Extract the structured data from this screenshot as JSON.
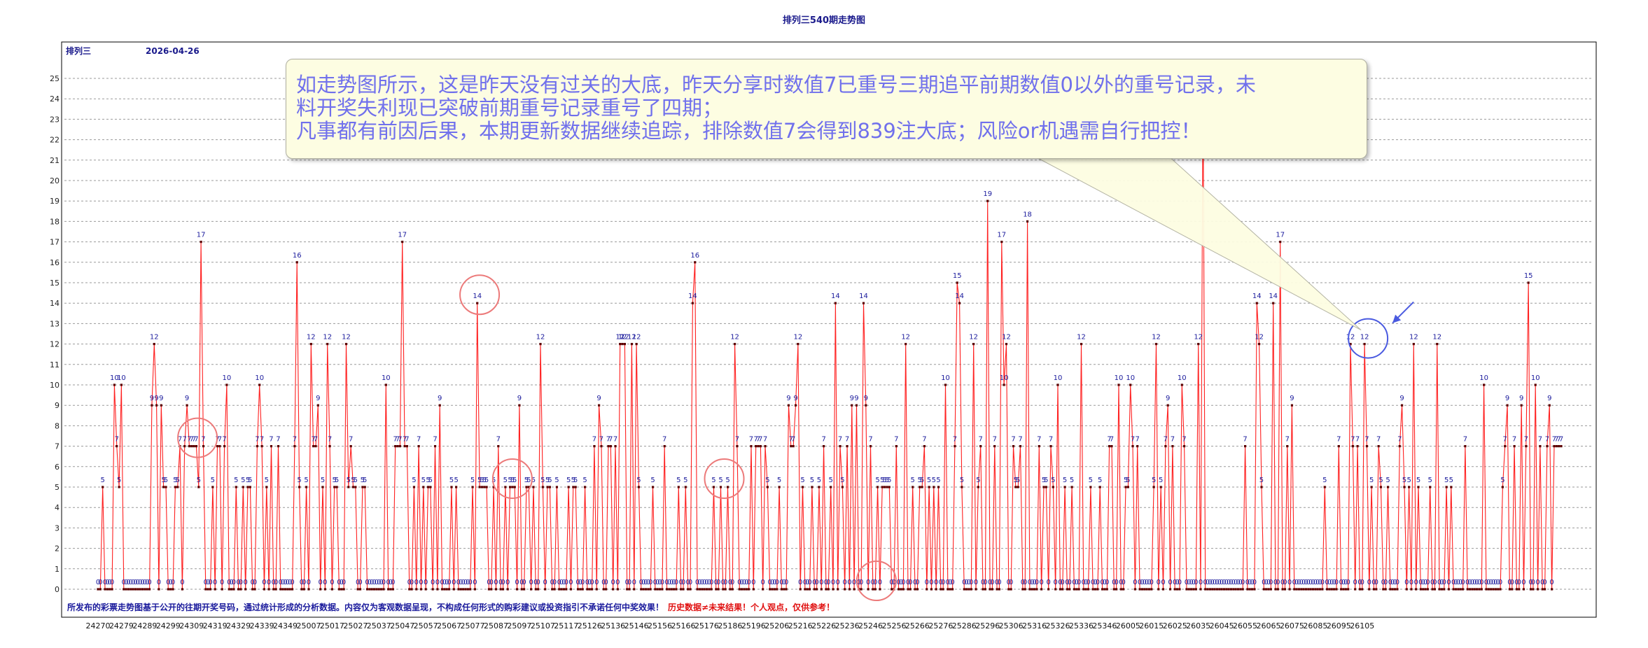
{
  "header": {
    "title": "排列三540期走势图",
    "lottery_name": "排列三",
    "date": "2026-04-26"
  },
  "chart_data": {
    "type": "line",
    "title": "排列三540期走势图",
    "ylim": [
      0,
      26
    ],
    "yticks": [
      0,
      1,
      2,
      3,
      4,
      5,
      6,
      7,
      8,
      9,
      10,
      11,
      12,
      13,
      14,
      15,
      16,
      17,
      18,
      19,
      20,
      21,
      22,
      23,
      24,
      25
    ],
    "grid": true,
    "x_tick_labels": [
      "24270",
      "24279",
      "24289",
      "24299",
      "24309",
      "24319",
      "24329",
      "24339",
      "24349",
      "25007",
      "25017",
      "25027",
      "25037",
      "25047",
      "25057",
      "25067",
      "25077",
      "25087",
      "25097",
      "25107",
      "25117",
      "25126",
      "25136",
      "25146",
      "25156",
      "25166",
      "25176",
      "25186",
      "25196",
      "25206",
      "25216",
      "25226",
      "25236",
      "25246",
      "25256",
      "25266",
      "25276",
      "25286",
      "25296",
      "25306",
      "25316",
      "25326",
      "25336",
      "25346",
      "26005",
      "26015",
      "26025",
      "26035",
      "26045",
      "26055",
      "26065",
      "26075",
      "26085",
      "26095",
      "26105"
    ],
    "series": [
      {
        "color": "#ff2020",
        "values": [
          0,
          0,
          5,
          0,
          0,
          0,
          0,
          10,
          7,
          5,
          10,
          0,
          0,
          0,
          0,
          0,
          0,
          0,
          0,
          0,
          0,
          0,
          0,
          9,
          12,
          9,
          0,
          9,
          5,
          5,
          0,
          0,
          0,
          5,
          5,
          7,
          0,
          7,
          9,
          7,
          7,
          7,
          7,
          5,
          17,
          7,
          0,
          0,
          0,
          5,
          0,
          7,
          7,
          0,
          7,
          10,
          0,
          0,
          0,
          5,
          0,
          0,
          5,
          0,
          5,
          5,
          0,
          0,
          7,
          10,
          7,
          0,
          5,
          0,
          7,
          0,
          0,
          7,
          0,
          0,
          0,
          0,
          0,
          0,
          7,
          16,
          5,
          0,
          0,
          5,
          0,
          12,
          7,
          7,
          9,
          0,
          5,
          0,
          12,
          7,
          0,
          5,
          5,
          0,
          0,
          0,
          12,
          5,
          7,
          5,
          5,
          0,
          0,
          5,
          5,
          0,
          0,
          0,
          0,
          0,
          0,
          0,
          0,
          10,
          0,
          0,
          0,
          7,
          7,
          7,
          17,
          7,
          7,
          0,
          0,
          5,
          0,
          7,
          0,
          5,
          0,
          5,
          5,
          0,
          7,
          0,
          9,
          0,
          0,
          0,
          0,
          5,
          0,
          5,
          0,
          0,
          0,
          0,
          0,
          0,
          5,
          0,
          14,
          5,
          5,
          5,
          5,
          0,
          0,
          5,
          0,
          7,
          0,
          0,
          5,
          0,
          5,
          5,
          5,
          0,
          9,
          0,
          0,
          5,
          5,
          0,
          5,
          0,
          0,
          12,
          5,
          0,
          5,
          5,
          0,
          0,
          5,
          0,
          0,
          0,
          0,
          5,
          0,
          5,
          5,
          0,
          0,
          0,
          5,
          0,
          0,
          0,
          7,
          0,
          9,
          7,
          0,
          0,
          7,
          7,
          0,
          7,
          0,
          12,
          12,
          12,
          0,
          0,
          12,
          0,
          12,
          5,
          0,
          0,
          0,
          0,
          0,
          5,
          0,
          0,
          0,
          0,
          7,
          0,
          0,
          0,
          0,
          0,
          5,
          0,
          0,
          5,
          0,
          0,
          14,
          16,
          0,
          0,
          0,
          0,
          0,
          0,
          0,
          5,
          0,
          0,
          5,
          0,
          0,
          5,
          0,
          0,
          12,
          7,
          0,
          0,
          0,
          0,
          0,
          7,
          0,
          7,
          7,
          7,
          0,
          7,
          5,
          0,
          0,
          0,
          0,
          5,
          0,
          0,
          0,
          9,
          7,
          7,
          9,
          12,
          0,
          5,
          0,
          0,
          0,
          5,
          0,
          0,
          5,
          0,
          7,
          0,
          0,
          5,
          0,
          14,
          0,
          7,
          5,
          0,
          7,
          0,
          9,
          0,
          9,
          0,
          0,
          14,
          9,
          0,
          7,
          0,
          0,
          5,
          0,
          5,
          5,
          5,
          5,
          0,
          0,
          7,
          0,
          0,
          0,
          12,
          0,
          0,
          5,
          0,
          0,
          5,
          5,
          7,
          0,
          5,
          0,
          5,
          0,
          5,
          0,
          0,
          10,
          0,
          0,
          0,
          7,
          15,
          14,
          5,
          0,
          0,
          0,
          0,
          12,
          0,
          5,
          7,
          0,
          0,
          19,
          0,
          0,
          7,
          0,
          0,
          17,
          10,
          12,
          0,
          0,
          7,
          5,
          5,
          7,
          0,
          0,
          18,
          0,
          0,
          0,
          0,
          7,
          0,
          5,
          5,
          0,
          7,
          5,
          0,
          10,
          0,
          0,
          5,
          0,
          0,
          5,
          0,
          0,
          0,
          12,
          0,
          0,
          0,
          5,
          0,
          0,
          0,
          5,
          0,
          0,
          0,
          7,
          7,
          0,
          0,
          10,
          0,
          0,
          5,
          5,
          10,
          7,
          0,
          7,
          0,
          0,
          0,
          0,
          0,
          0,
          5,
          12,
          0,
          5,
          0,
          7,
          9,
          0,
          7,
          0,
          0,
          0,
          10,
          7,
          0,
          0,
          0,
          0,
          0,
          12,
          0,
          25,
          0,
          0,
          0,
          0,
          0,
          0,
          0,
          0,
          0,
          0,
          0,
          0,
          0,
          0,
          0,
          0,
          0,
          7,
          0,
          0,
          0,
          0,
          14,
          12,
          5,
          0,
          0,
          0,
          0,
          14,
          0,
          0,
          17,
          0,
          0,
          7,
          0,
          9,
          0,
          0,
          0,
          0,
          0,
          0,
          0,
          0,
          0,
          0,
          0,
          0,
          0,
          5,
          0,
          0,
          0,
          0,
          0,
          7,
          0,
          0,
          0,
          0,
          12,
          7,
          0,
          7,
          0,
          0,
          12,
          7,
          0,
          5,
          0,
          0,
          7,
          5,
          0,
          0,
          5,
          0,
          0,
          0,
          0,
          7,
          9,
          5,
          0,
          5,
          0,
          12,
          0,
          5,
          0,
          0,
          0,
          0,
          5,
          0,
          0,
          12,
          0,
          0,
          0,
          5,
          0,
          5,
          0,
          0,
          0,
          0,
          0,
          7,
          0,
          0,
          0,
          0,
          0,
          0,
          0,
          10,
          0,
          0,
          0,
          0,
          0,
          0,
          0,
          5,
          7,
          9,
          0,
          0,
          7,
          0,
          0,
          9,
          0,
          7,
          15,
          0,
          0,
          10,
          0,
          7,
          0,
          0,
          7,
          9,
          0,
          7,
          7,
          7,
          7
        ]
      }
    ],
    "highlighted_points": [
      {
        "index": 541,
        "value": 7
      },
      {
        "index": 542,
        "value": 7
      },
      {
        "index": 543,
        "value": 7
      },
      {
        "index": 544,
        "value": 7
      }
    ]
  },
  "annotation": {
    "lines": [
      "如走势图所示，这是昨天没有过关的大底，昨天分享时数值7已重号三期追平前期数值0以外的重号记录，未",
      "料开奖失利现已突破前期重号记录重号了四期；",
      "凡事都有前因后果，本期更新数据继续追踪，排除数值7会得到839注大底；风险or机遇需自行把控！"
    ]
  },
  "disclaimer": {
    "blue": "所发布的彩票走势图基于公开的往期开奖号码，通过统计形成的分析数据。内容仅为客观数据呈现，不构成任何形式的购彩建议或投资指引不承诺任何中奖效果！",
    "red": "历史数据≠未来结果！个人观点，仅供参考！"
  },
  "colors": {
    "line": "#ff2020",
    "marker": "#5a0000",
    "label": "#1a1a9c",
    "circle": "#ec7a7a",
    "circle_last": "#4a5ae0",
    "grid": "#9a9a9a"
  }
}
